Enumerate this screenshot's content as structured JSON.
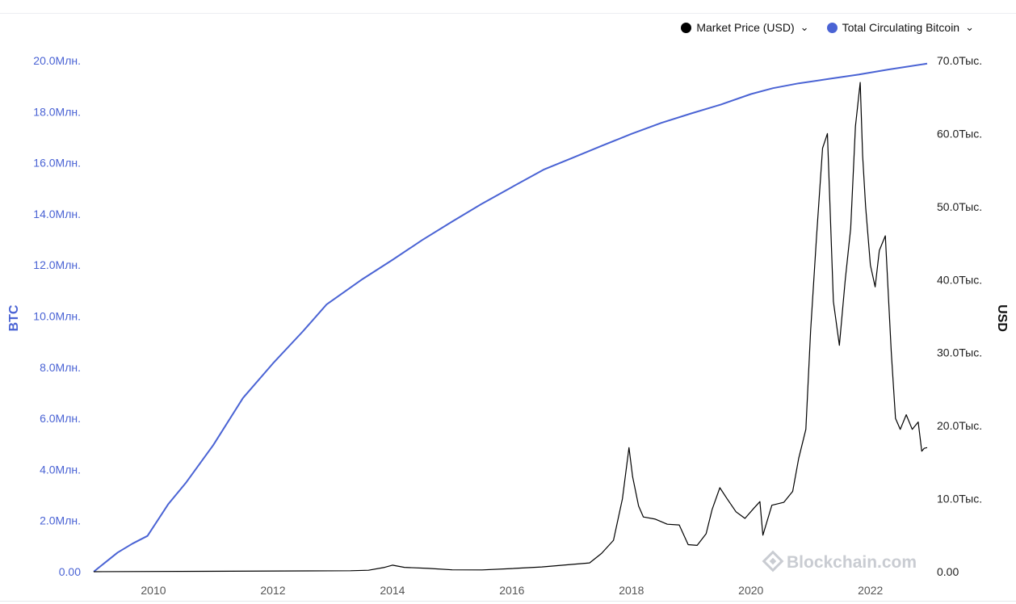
{
  "legend": [
    {
      "label": "Market Price (USD)",
      "color": "#000000"
    },
    {
      "label": "Total Circulating Bitcoin",
      "color": "#4a63d4"
    }
  ],
  "watermark": "Blockchain.com",
  "chart_data": {
    "type": "line",
    "title": "",
    "xlabel": "",
    "ylabel_left": "BTC",
    "ylabel_right": "USD",
    "x_ticks": [
      "2010",
      "2012",
      "2014",
      "2016",
      "2018",
      "2020",
      "2022"
    ],
    "y_left_ticks": [
      "0.00",
      "2.0Млн.",
      "4.0Млн.",
      "6.0Млн.",
      "8.0Млн.",
      "10.0Млн.",
      "12.0Млн.",
      "14.0Млн.",
      "16.0Млн.",
      "18.0Млн.",
      "20.0Млн."
    ],
    "y_right_ticks": [
      "0.00",
      "10.0Тыс.",
      "20.0Тыс.",
      "30.0Тыс.",
      "40.0Тыс.",
      "50.0Тыс.",
      "60.0Тыс.",
      "70.0Тыс."
    ],
    "ylim_left": [
      0,
      20000000
    ],
    "ylim_right": [
      0,
      70000
    ],
    "xlim": [
      2009.0,
      2022.95
    ],
    "legend_position": "top-right",
    "grid": false,
    "series": [
      {
        "name": "Total Circulating Bitcoin",
        "axis": "left",
        "color": "#4a63d4",
        "x": [
          2009.0,
          2009.4,
          2009.65,
          2009.9,
          2010.25,
          2010.55,
          2011.0,
          2011.5,
          2012.0,
          2012.5,
          2012.9,
          2013.5,
          2014.0,
          2014.5,
          2015.0,
          2015.5,
          2016.0,
          2016.53,
          2017.0,
          2017.5,
          2018.0,
          2018.5,
          2019.0,
          2019.5,
          2020.0,
          2020.37,
          2020.8,
          2021.3,
          2021.8,
          2022.3,
          2022.95
        ],
        "values": [
          0,
          750000,
          1100000,
          1400000,
          2650000,
          3500000,
          4950000,
          6800000,
          8150000,
          9400000,
          10460000,
          11450000,
          12200000,
          12980000,
          13700000,
          14400000,
          15050000,
          15730000,
          16180000,
          16660000,
          17130000,
          17560000,
          17930000,
          18280000,
          18690000,
          18920000,
          19110000,
          19280000,
          19450000,
          19650000,
          19880000
        ]
      },
      {
        "name": "Market Price (USD)",
        "axis": "right",
        "color": "#000000",
        "x": [
          2009.0,
          2013.3,
          2013.6,
          2013.87,
          2014.0,
          2014.2,
          2014.6,
          2015.0,
          2015.5,
          2016.0,
          2016.5,
          2017.0,
          2017.3,
          2017.5,
          2017.7,
          2017.85,
          2017.96,
          2018.02,
          2018.12,
          2018.2,
          2018.4,
          2018.6,
          2018.8,
          2018.95,
          2019.1,
          2019.25,
          2019.35,
          2019.48,
          2019.6,
          2019.75,
          2019.9,
          2020.05,
          2020.15,
          2020.2,
          2020.35,
          2020.55,
          2020.7,
          2020.8,
          2020.92,
          2021.0,
          2021.1,
          2021.2,
          2021.28,
          2021.38,
          2021.48,
          2021.58,
          2021.67,
          2021.75,
          2021.83,
          2021.87,
          2021.92,
          2022.0,
          2022.08,
          2022.15,
          2022.25,
          2022.35,
          2022.42,
          2022.5,
          2022.6,
          2022.7,
          2022.8,
          2022.86,
          2022.9,
          2022.95
        ],
        "values": [
          0,
          130,
          200,
          600,
          900,
          600,
          450,
          250,
          240,
          430,
          650,
          1000,
          1200,
          2500,
          4300,
          10000,
          17000,
          13000,
          9000,
          7500,
          7200,
          6500,
          6400,
          3700,
          3600,
          5200,
          8500,
          11500,
          10000,
          8200,
          7300,
          8700,
          9600,
          5000,
          9100,
          9500,
          11000,
          15500,
          19500,
          33000,
          46000,
          58000,
          60000,
          37000,
          31000,
          40000,
          47000,
          61000,
          67000,
          57000,
          50000,
          42000,
          39000,
          44000,
          46000,
          30000,
          21000,
          19500,
          21500,
          19500,
          20500,
          16500,
          16900,
          17000
        ]
      }
    ]
  }
}
